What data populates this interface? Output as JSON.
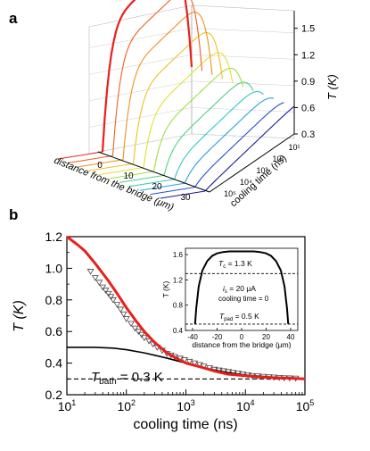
{
  "chart_data": [
    {
      "panel": "a",
      "type": "line",
      "projection": "3d-surface",
      "xlabel": "distance from the bridge (μm)",
      "ylabel": "cooling time (ns)",
      "zlabel": "T (K)",
      "x_ticks": [
        "0",
        "10",
        "20",
        "30"
      ],
      "y_ticks": [
        "10⁵",
        "10⁴",
        "10³",
        "10²",
        "10¹"
      ],
      "z_ticks": [
        "0.3",
        "0.6",
        "0.9",
        "1.2",
        "1.5"
      ],
      "zlim": [
        0.3,
        1.7
      ],
      "colormap": [
        "#1a1a9a",
        "#2a4fd0",
        "#2aa0e0",
        "#30c8c0",
        "#50d080",
        "#a0e040",
        "#e0e030",
        "#f0c020",
        "#f09020",
        "#f06020",
        "#e03020"
      ],
      "highlight_color": "#e8201c",
      "series": [
        {
          "cooling_time_ns": 0,
          "plateau_T_K": 1.68
        },
        {
          "cooling_time_ns": 30,
          "plateau_T_K": 1.45
        },
        {
          "cooling_time_ns": 60,
          "plateau_T_K": 1.25
        },
        {
          "cooling_time_ns": 100,
          "plateau_T_K": 1.05
        },
        {
          "cooling_time_ns": 200,
          "plateau_T_K": 0.85
        },
        {
          "cooling_time_ns": 400,
          "plateau_T_K": 0.7
        },
        {
          "cooling_time_ns": 800,
          "plateau_T_K": 0.56
        },
        {
          "cooling_time_ns": 1500,
          "plateau_T_K": 0.47
        },
        {
          "cooling_time_ns": 3000,
          "plateau_T_K": 0.41
        },
        {
          "cooling_time_ns": 10000,
          "plateau_T_K": 0.35
        },
        {
          "cooling_time_ns": 100000,
          "plateau_T_K": 0.31
        }
      ]
    },
    {
      "panel": "b",
      "type": "line",
      "xlabel": "cooling time (ns)",
      "ylabel": "T (K)",
      "x_scale": "log",
      "xlim": [
        10,
        100000
      ],
      "ylim": [
        0.2,
        1.2
      ],
      "x_ticks": [
        "10¹",
        "10²",
        "10³",
        "10⁴",
        "10⁵"
      ],
      "y_ticks": [
        "0.2",
        "0.4",
        "0.6",
        "0.8",
        "1.0",
        "1.2"
      ],
      "annotation": "T_bath = 0.3 K",
      "bath_level": 0.3,
      "series": [
        {
          "color": "#e8201c",
          "style": "solid-thick",
          "x": [
            10,
            15,
            20,
            30,
            50,
            70,
            100,
            150,
            200,
            300,
            500,
            700,
            1000,
            2000,
            3000,
            5000,
            10000,
            20000,
            50000,
            100000
          ],
          "y": [
            1.2,
            1.15,
            1.11,
            1.03,
            0.92,
            0.84,
            0.75,
            0.66,
            0.6,
            0.53,
            0.46,
            0.43,
            0.4,
            0.37,
            0.35,
            0.33,
            0.32,
            0.31,
            0.305,
            0.3
          ]
        },
        {
          "color": "#000000",
          "style": "solid",
          "x": [
            10,
            30,
            60,
            100,
            200,
            300,
            500,
            1000,
            2000,
            5000,
            10000,
            30000,
            100000
          ],
          "y": [
            0.5,
            0.5,
            0.495,
            0.485,
            0.465,
            0.45,
            0.43,
            0.4,
            0.37,
            0.34,
            0.325,
            0.31,
            0.3
          ]
        },
        {
          "color": "#333333",
          "style": "markers-triangle",
          "x": [
            25,
            30,
            35,
            40,
            45,
            50,
            55,
            60,
            70,
            80,
            90,
            100,
            120,
            140,
            160,
            180,
            200,
            240,
            280,
            330,
            400,
            480,
            560,
            650,
            800,
            950,
            1150,
            1400,
            1700,
            2000,
            2500,
            3000,
            3600,
            4300,
            5200,
            6200,
            7500,
            9000,
            11000,
            13000,
            16000,
            20000,
            25000,
            30000,
            37000,
            45000,
            55000,
            70000
          ],
          "y": [
            0.98,
            0.94,
            0.91,
            0.88,
            0.86,
            0.84,
            0.82,
            0.8,
            0.77,
            0.74,
            0.71,
            0.68,
            0.65,
            0.62,
            0.6,
            0.58,
            0.56,
            0.54,
            0.52,
            0.5,
            0.48,
            0.46,
            0.45,
            0.44,
            0.43,
            0.42,
            0.41,
            0.4,
            0.39,
            0.38,
            0.37,
            0.36,
            0.355,
            0.35,
            0.345,
            0.34,
            0.335,
            0.33,
            0.325,
            0.32,
            0.318,
            0.315,
            0.312,
            0.31,
            0.308,
            0.306,
            0.305,
            0.304
          ]
        }
      ],
      "inset": {
        "xlabel": "distance from the bridge (μm)",
        "ylabel": "T (K)",
        "xlim": [
          -40,
          40
        ],
        "ylim": [
          0.4,
          1.7
        ],
        "x_ticks": [
          "-40",
          "-20",
          "0",
          "20",
          "40"
        ],
        "y_ticks": [
          "0.4",
          "0.8",
          "1.2",
          "1.6"
        ],
        "Tc_text": "T_c = 1.3 K",
        "Tc_value": 1.3,
        "is_text": "i_s = 20 μA",
        "cooling_text": "cooling time = 0",
        "Tpad_text": "T_pad = 0.5 K",
        "Tpad_value": 0.5,
        "x": [
          -38,
          -37,
          -35,
          -32,
          -28,
          -24,
          -20,
          -15,
          -10,
          0,
          10,
          15,
          20,
          24,
          28,
          32,
          35,
          37,
          38
        ],
        "y": [
          0.5,
          0.75,
          1.1,
          1.35,
          1.5,
          1.58,
          1.62,
          1.64,
          1.65,
          1.65,
          1.65,
          1.64,
          1.62,
          1.58,
          1.5,
          1.35,
          1.1,
          0.75,
          0.5
        ]
      }
    }
  ],
  "panel_labels": {
    "a": "a",
    "b": "b"
  }
}
